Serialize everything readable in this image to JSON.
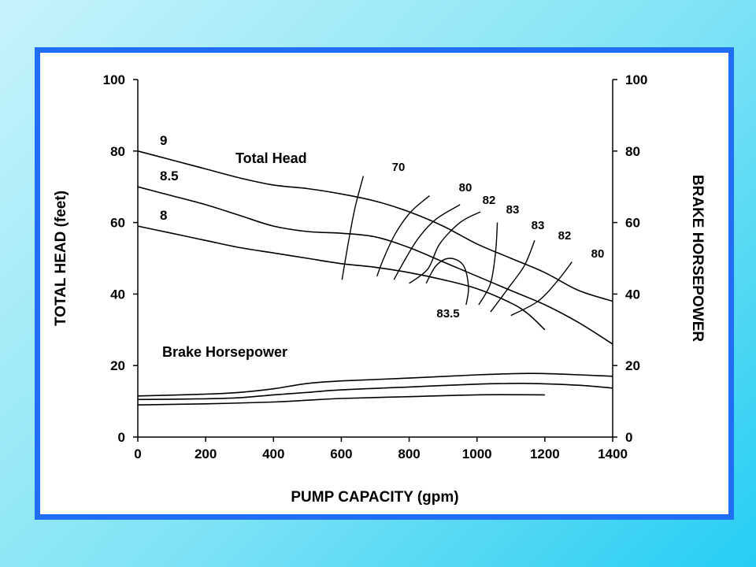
{
  "colors": {
    "frame": "#1f6ef5",
    "background_gradient": [
      "#c7f3fb",
      "#26cdf4"
    ],
    "ink": "#000000"
  },
  "chart_data": {
    "type": "line",
    "xlabel": "PUMP CAPACITY (gpm)",
    "ylabel": "TOTAL HEAD (feet)",
    "y2label": "BRAKE HORSEPOWER",
    "xlim": [
      0,
      1400
    ],
    "ylim": [
      0,
      100
    ],
    "y2lim": [
      0,
      100
    ],
    "x_ticks": [
      0,
      200,
      400,
      600,
      800,
      1000,
      1200,
      1400
    ],
    "y_ticks": [
      0,
      20,
      40,
      60,
      80,
      100
    ],
    "y2_ticks": [
      0,
      20,
      40,
      60,
      80,
      100
    ],
    "grid": false,
    "head_curves": [
      {
        "label": "9",
        "points": [
          [
            0,
            80
          ],
          [
            100,
            77.5
          ],
          [
            200,
            75
          ],
          [
            300,
            72.5
          ],
          [
            400,
            70.5
          ],
          [
            500,
            69.5
          ],
          [
            600,
            68
          ],
          [
            700,
            66
          ],
          [
            800,
            63
          ],
          [
            900,
            59
          ],
          [
            1000,
            54
          ],
          [
            1100,
            50
          ],
          [
            1200,
            46
          ],
          [
            1300,
            41
          ],
          [
            1400,
            38
          ]
        ]
      },
      {
        "label": "8.5",
        "points": [
          [
            0,
            70
          ],
          [
            100,
            67.5
          ],
          [
            200,
            65
          ],
          [
            300,
            62
          ],
          [
            400,
            59
          ],
          [
            500,
            57.5
          ],
          [
            600,
            57
          ],
          [
            700,
            56
          ],
          [
            800,
            53
          ],
          [
            900,
            49
          ],
          [
            1000,
            45
          ],
          [
            1100,
            41
          ],
          [
            1200,
            37
          ],
          [
            1300,
            32
          ],
          [
            1400,
            26
          ]
        ]
      },
      {
        "label": "8",
        "points": [
          [
            0,
            59
          ],
          [
            100,
            57
          ],
          [
            200,
            55
          ],
          [
            300,
            53
          ],
          [
            400,
            51.5
          ],
          [
            500,
            50
          ],
          [
            600,
            48.5
          ],
          [
            700,
            47.5
          ],
          [
            800,
            46
          ],
          [
            900,
            44
          ],
          [
            1000,
            41.5
          ],
          [
            1100,
            37.5
          ],
          [
            1150,
            34.5
          ],
          [
            1200,
            30
          ]
        ]
      }
    ],
    "efficiency_contours": [
      {
        "label": "70",
        "points": [
          [
            665,
            73
          ],
          [
            640,
            64
          ],
          [
            620,
            54
          ],
          [
            602,
            44
          ]
        ]
      },
      {
        "label": "80",
        "points": [
          [
            860,
            67.5
          ],
          [
            805,
            63
          ],
          [
            760,
            57
          ],
          [
            725,
            50
          ],
          [
            705,
            45
          ]
        ]
      },
      {
        "label": "82",
        "points": [
          [
            950,
            65
          ],
          [
            880,
            61
          ],
          [
            830,
            56
          ],
          [
            790,
            50
          ],
          [
            755,
            44
          ]
        ]
      },
      {
        "label": "83",
        "points": [
          [
            1010,
            63
          ],
          [
            950,
            60
          ],
          [
            890,
            54
          ],
          [
            855,
            47
          ],
          [
            800,
            43
          ]
        ]
      },
      {
        "label": "83",
        "points": [
          [
            1060,
            60
          ],
          [
            1055,
            52
          ],
          [
            1040,
            43
          ],
          [
            1005,
            37
          ]
        ]
      },
      {
        "label": "82",
        "points": [
          [
            1170,
            55
          ],
          [
            1140,
            48
          ],
          [
            1095,
            42
          ],
          [
            1040,
            35
          ]
        ]
      },
      {
        "label": "80",
        "points": [
          [
            1280,
            49
          ],
          [
            1240,
            44
          ],
          [
            1180,
            38
          ],
          [
            1100,
            34
          ]
        ]
      },
      {
        "label": "83.5",
        "closed": false,
        "points": [
          [
            850,
            43
          ],
          [
            880,
            48
          ],
          [
            920,
            50
          ],
          [
            960,
            48
          ],
          [
            975,
            42
          ],
          [
            968,
            37
          ]
        ]
      }
    ],
    "brake_horsepower_curves": [
      {
        "label": "9",
        "points": [
          [
            0,
            11.5
          ],
          [
            200,
            12
          ],
          [
            300,
            12.5
          ],
          [
            400,
            13.5
          ],
          [
            500,
            15
          ],
          [
            600,
            15.7
          ],
          [
            800,
            16.5
          ],
          [
            1000,
            17.4
          ],
          [
            1150,
            17.8
          ],
          [
            1250,
            17.6
          ],
          [
            1400,
            17
          ]
        ]
      },
      {
        "label": "8.5",
        "points": [
          [
            0,
            10.5
          ],
          [
            200,
            10.7
          ],
          [
            300,
            11
          ],
          [
            400,
            11.8
          ],
          [
            500,
            12.5
          ],
          [
            600,
            13.2
          ],
          [
            800,
            14
          ],
          [
            1000,
            14.8
          ],
          [
            1150,
            15
          ],
          [
            1300,
            14.5
          ],
          [
            1400,
            13.7
          ]
        ]
      },
      {
        "label": "8",
        "points": [
          [
            0,
            9
          ],
          [
            200,
            9.3
          ],
          [
            400,
            9.8
          ],
          [
            500,
            10.3
          ],
          [
            600,
            10.8
          ],
          [
            800,
            11.3
          ],
          [
            1000,
            11.8
          ],
          [
            1200,
            11.8
          ]
        ]
      }
    ],
    "annotations": [
      "Total Head",
      "Brake Horsepower"
    ],
    "contour_value_label": "83.5"
  }
}
